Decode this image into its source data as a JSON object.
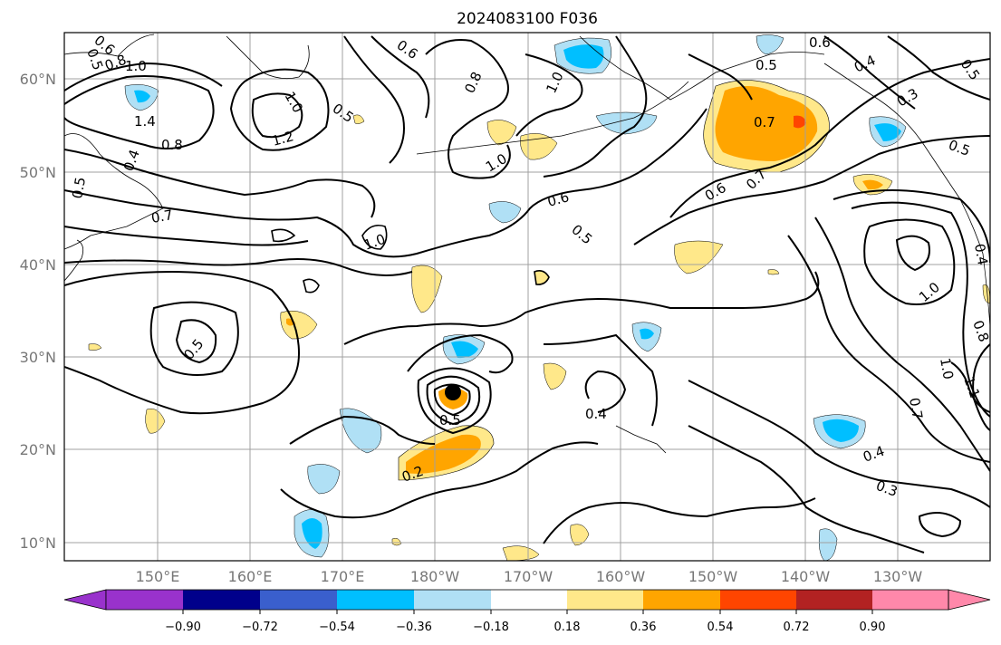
{
  "map": {
    "title": "2024083100 F036",
    "lat_labels": [
      "60°N",
      "50°N",
      "40°N",
      "30°N",
      "20°N",
      "10°N"
    ],
    "lon_labels": [
      "150°E",
      "160°E",
      "170°E",
      "180°W",
      "170°W",
      "160°W",
      "150°W",
      "140°W",
      "130°W"
    ],
    "contour_labels": [
      "0.5",
      "0.6",
      "0.8",
      "0.6",
      "0.5",
      "0.8",
      "1.0",
      "0.5",
      "0.6",
      "0.4",
      "0.3",
      "0.5",
      "1.4",
      "0.8",
      "1.2",
      "0.4",
      "0.5",
      "1.0",
      "1.0",
      "0.7",
      "0.6",
      "0.7",
      "0.6",
      "0.7",
      "0.5",
      "1.0",
      "0.4",
      "0.5",
      "0.5",
      "0.4",
      "0.2",
      "1.0",
      "1.0",
      "0.7",
      "1.1",
      "0.4",
      "0.3",
      "0.5",
      "0.8",
      "1.0"
    ],
    "colors": {
      "contour": "#000000",
      "land": "#000000",
      "grid": "#a0a0a0",
      "tick_text": "#777777"
    }
  },
  "colorbar": {
    "tick_labels": [
      "−0.90",
      "−0.72",
      "−0.54",
      "−0.36",
      "−0.18",
      "0.18",
      "0.36",
      "0.54",
      "0.72",
      "0.90"
    ],
    "colors": [
      "#9932cc",
      "#00008b",
      "#3a5fcd",
      "#00bfff",
      "#b0e0f5",
      "#ffffff",
      "#ffe88a",
      "#ffa500",
      "#ff4500",
      "#b22222",
      "#ff88aa"
    ]
  },
  "shading_colors": {
    "light_blue": "#b0e0f5",
    "blue": "#00bfff",
    "yellow": "#ffe88a",
    "orange": "#ffa500",
    "red": "#ff4500"
  }
}
